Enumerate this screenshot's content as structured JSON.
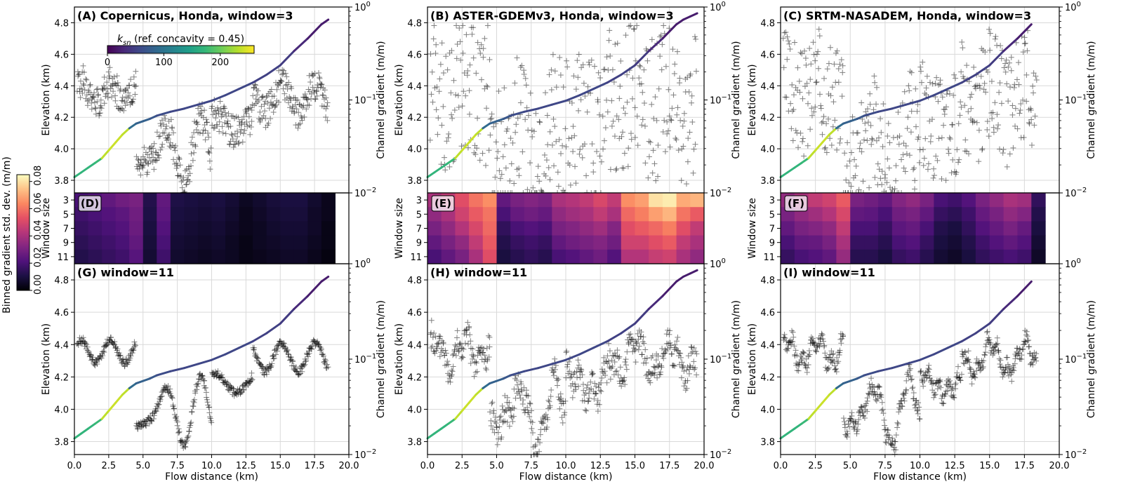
{
  "figure": {
    "colorbar_ksn": {
      "label_prefix": "k",
      "label_sub": "sn",
      "label_suffix": " (ref. concavity = 0.45)",
      "ticks": [
        "0",
        "100",
        "200"
      ],
      "range": [
        0,
        260
      ]
    },
    "colorbar_std": {
      "label": "Binned gradient std. dev. (m/m)",
      "ticks": [
        "0.00",
        "0.02",
        "0.04",
        "0.06",
        "0.08"
      ],
      "range": [
        0,
        0.085
      ]
    },
    "shared_axes": {
      "xlabel": "Flow distance (km)",
      "ylabel_elev": "Elevation (km)",
      "ylabel_grad": "Channel gradient (m/m)",
      "ylabel_window": "Window size",
      "x_ticks": [
        "0.0",
        "2.5",
        "5.0",
        "7.5",
        "10.0",
        "12.5",
        "15.0",
        "17.5",
        "20.0"
      ],
      "elev_ticks": [
        "3.8",
        "4.0",
        "4.2",
        "4.4",
        "4.6",
        "4.8"
      ],
      "window_ticks": [
        "3",
        "5",
        "7",
        "9",
        "11"
      ],
      "grad_tick_base": "10",
      "grad_tick_exps": [
        "0",
        "−1",
        "−2"
      ],
      "xlim": [
        0,
        20
      ],
      "elev_lim": [
        3.72,
        4.9
      ],
      "grad_lim": [
        0.01,
        1
      ]
    }
  },
  "chart_data": [
    {
      "id": "A",
      "type": "line",
      "title": "(A) Copernicus, Honda, window=3",
      "dataset": "Copernicus",
      "window": 3,
      "profile_end_km": 18.5,
      "grad_seed": 1,
      "grad_mode": "smooth-noisy"
    },
    {
      "id": "B",
      "type": "line",
      "title": "(B) ASTER-GDEMv3, Honda, window=3",
      "dataset": "ASTER-GDEMv3",
      "window": 3,
      "profile_end_km": 19.5,
      "grad_seed": 2,
      "grad_mode": "scatter"
    },
    {
      "id": "C",
      "type": "line",
      "title": "(C) SRTM-NASADEM, Honda, window=3",
      "dataset": "SRTM-NASADEM",
      "window": 3,
      "profile_end_km": 18.4,
      "grad_seed": 3,
      "grad_mode": "scatter-mid"
    },
    {
      "id": "D",
      "type": "heatmap",
      "label": "(D)",
      "bins": [
        0,
        1,
        2,
        3,
        4,
        5,
        6,
        7,
        8,
        9,
        10,
        11,
        12,
        13,
        14,
        15,
        16,
        17,
        18
      ],
      "rows": [
        3,
        5,
        7,
        9,
        11
      ],
      "values": [
        [
          0.02,
          0.022,
          0.025,
          0.028,
          0.03,
          0.012,
          0.025,
          0.011,
          0.01,
          0.009,
          0.01,
          0.008,
          0.005,
          0.007,
          0.009,
          0.01,
          0.01,
          0.007,
          0.004
        ],
        [
          0.018,
          0.02,
          0.022,
          0.024,
          0.028,
          0.011,
          0.024,
          0.01,
          0.009,
          0.008,
          0.009,
          0.007,
          0.004,
          0.006,
          0.008,
          0.009,
          0.009,
          0.006,
          0.004
        ],
        [
          0.016,
          0.018,
          0.02,
          0.022,
          0.027,
          0.01,
          0.022,
          0.009,
          0.008,
          0.007,
          0.008,
          0.006,
          0.004,
          0.005,
          0.007,
          0.008,
          0.008,
          0.006,
          0.003
        ],
        [
          0.014,
          0.016,
          0.018,
          0.02,
          0.025,
          0.009,
          0.02,
          0.008,
          0.007,
          0.006,
          0.007,
          0.005,
          0.003,
          0.005,
          0.006,
          0.007,
          0.007,
          0.005,
          0.003
        ],
        [
          0.012,
          0.014,
          0.016,
          0.018,
          0.023,
          0.008,
          0.018,
          0.007,
          0.006,
          0.005,
          0.006,
          0.005,
          0.003,
          0.004,
          0.005,
          0.006,
          0.006,
          0.004,
          0.002
        ]
      ]
    },
    {
      "id": "E",
      "type": "heatmap",
      "label": "(E)",
      "bins": [
        0,
        1,
        2,
        3,
        4,
        5,
        6,
        7,
        8,
        9,
        10,
        11,
        12,
        13,
        14,
        15,
        16,
        17,
        18,
        19
      ],
      "rows": [
        3,
        5,
        7,
        9,
        11
      ],
      "values": [
        [
          0.04,
          0.045,
          0.052,
          0.06,
          0.065,
          0.025,
          0.03,
          0.032,
          0.03,
          0.04,
          0.042,
          0.045,
          0.05,
          0.045,
          0.065,
          0.068,
          0.08,
          0.082,
          0.07,
          0.072
        ],
        [
          0.035,
          0.04,
          0.048,
          0.055,
          0.06,
          0.02,
          0.026,
          0.028,
          0.026,
          0.035,
          0.038,
          0.04,
          0.045,
          0.04,
          0.058,
          0.062,
          0.068,
          0.072,
          0.06,
          0.055
        ],
        [
          0.03,
          0.035,
          0.042,
          0.05,
          0.058,
          0.015,
          0.02,
          0.022,
          0.02,
          0.03,
          0.032,
          0.035,
          0.038,
          0.032,
          0.052,
          0.055,
          0.058,
          0.062,
          0.052,
          0.045
        ],
        [
          0.025,
          0.03,
          0.035,
          0.045,
          0.055,
          0.012,
          0.016,
          0.018,
          0.016,
          0.025,
          0.028,
          0.03,
          0.032,
          0.028,
          0.048,
          0.048,
          0.052,
          0.055,
          0.045,
          0.04
        ],
        [
          0.02,
          0.025,
          0.03,
          0.04,
          0.052,
          0.01,
          0.013,
          0.015,
          0.013,
          0.02,
          0.022,
          0.025,
          0.028,
          0.022,
          0.042,
          0.042,
          0.046,
          0.048,
          0.04,
          0.035
        ]
      ]
    },
    {
      "id": "F",
      "type": "heatmap",
      "label": "(F)",
      "bins": [
        0,
        1,
        2,
        3,
        4,
        5,
        6,
        7,
        8,
        9,
        10,
        11,
        12,
        13,
        14,
        15,
        16,
        17,
        18
      ],
      "rows": [
        3,
        5,
        7,
        9,
        11
      ],
      "values": [
        [
          0.035,
          0.04,
          0.045,
          0.048,
          0.055,
          0.03,
          0.028,
          0.025,
          0.032,
          0.035,
          0.03,
          0.02,
          0.018,
          0.022,
          0.03,
          0.035,
          0.04,
          0.038,
          0.015
        ],
        [
          0.03,
          0.035,
          0.038,
          0.042,
          0.05,
          0.025,
          0.024,
          0.02,
          0.028,
          0.03,
          0.025,
          0.016,
          0.014,
          0.018,
          0.026,
          0.03,
          0.035,
          0.032,
          0.012
        ],
        [
          0.025,
          0.03,
          0.032,
          0.035,
          0.045,
          0.02,
          0.02,
          0.016,
          0.024,
          0.026,
          0.02,
          0.012,
          0.01,
          0.015,
          0.022,
          0.026,
          0.03,
          0.026,
          0.01
        ],
        [
          0.02,
          0.025,
          0.026,
          0.03,
          0.04,
          0.016,
          0.016,
          0.013,
          0.02,
          0.022,
          0.016,
          0.01,
          0.008,
          0.012,
          0.018,
          0.022,
          0.025,
          0.022,
          0.008
        ],
        [
          0.016,
          0.02,
          0.022,
          0.025,
          0.036,
          0.013,
          0.013,
          0.01,
          0.016,
          0.018,
          0.013,
          0.008,
          0.006,
          0.01,
          0.015,
          0.018,
          0.02,
          0.018,
          0.006
        ]
      ]
    },
    {
      "id": "G",
      "type": "line",
      "title": "(G) window=11",
      "dataset": "Copernicus",
      "window": 11,
      "profile_end_km": 18.5,
      "grad_seed": 4,
      "grad_mode": "smooth"
    },
    {
      "id": "H",
      "type": "line",
      "title": "(H) window=11",
      "dataset": "ASTER-GDEMv3",
      "window": 11,
      "profile_end_km": 19.5,
      "grad_seed": 5,
      "grad_mode": "smooth-noisy2"
    },
    {
      "id": "I",
      "type": "line",
      "title": "(I) window=11",
      "dataset": "SRTM-NASADEM",
      "window": 11,
      "profile_end_km": 18.4,
      "grad_seed": 6,
      "grad_mode": "smooth3"
    }
  ],
  "profile": {
    "x": [
      0,
      0.5,
      1,
      1.5,
      2,
      2.5,
      3,
      3.5,
      4,
      4.5,
      5,
      5.5,
      6,
      7,
      8,
      9,
      10,
      11,
      12,
      13,
      14,
      15,
      16,
      17,
      18,
      18.5,
      19,
      19.5
    ],
    "elev": [
      3.82,
      3.85,
      3.88,
      3.91,
      3.94,
      3.99,
      4.04,
      4.09,
      4.13,
      4.16,
      4.175,
      4.19,
      4.21,
      4.235,
      4.255,
      4.28,
      4.305,
      4.34,
      4.38,
      4.42,
      4.47,
      4.53,
      4.62,
      4.7,
      4.79,
      4.82,
      4.84,
      4.86
    ],
    "ksn": [
      170,
      170,
      170,
      170,
      175,
      235,
      240,
      240,
      235,
      90,
      80,
      80,
      70,
      60,
      55,
      55,
      55,
      55,
      55,
      55,
      50,
      50,
      45,
      30,
      20,
      20,
      20,
      20
    ]
  }
}
